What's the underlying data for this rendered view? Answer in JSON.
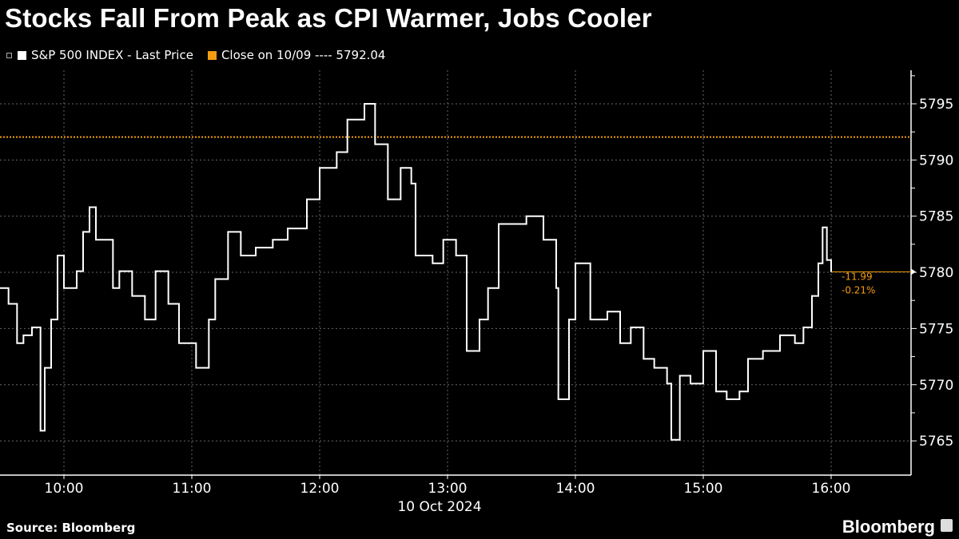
{
  "chart_data": {
    "type": "line",
    "title": "Stocks Fall From Peak as CPI Warmer, Jobs Cooler",
    "xlabel": "10 Oct 2024",
    "ylabel": "",
    "x_ticks": [
      "10:00",
      "11:00",
      "12:00",
      "13:00",
      "14:00",
      "15:00",
      "16:00"
    ],
    "y_ticks": [
      5765,
      5770,
      5775,
      5780,
      5785,
      5790,
      5795
    ],
    "ylim": [
      5762,
      5798
    ],
    "xlim": [
      "09:30",
      "16:30"
    ],
    "grid": true,
    "legend_position": "top-left",
    "series": [
      {
        "name": "S&P 500 INDEX - Last Price",
        "color": "#ffffff",
        "x": [
          "09:30",
          "09:34",
          "09:38",
          "09:41",
          "09:45",
          "09:49",
          "09:51",
          "09:54",
          "09:57",
          "10:00",
          "10:06",
          "10:09",
          "10:12",
          "10:15",
          "10:19",
          "10:23",
          "10:26",
          "10:32",
          "10:38",
          "10:43",
          "10:49",
          "10:54",
          "11:02",
          "11:08",
          "11:11",
          "11:17",
          "11:23",
          "11:30",
          "11:38",
          "11:45",
          "11:54",
          "12:00",
          "12:08",
          "12:13",
          "12:21",
          "12:26",
          "12:32",
          "12:38",
          "12:43",
          "12:45",
          "12:53",
          "12:58",
          "13:04",
          "13:09",
          "13:15",
          "13:19",
          "13:24",
          "13:32",
          "13:37",
          "13:45",
          "13:51",
          "13:52",
          "13:57",
          "14:00",
          "14:07",
          "14:15",
          "14:21",
          "14:26",
          "14:32",
          "14:37",
          "14:43",
          "14:45",
          "14:49",
          "14:54",
          "15:00",
          "15:06",
          "15:11",
          "15:17",
          "15:21",
          "15:28",
          "15:36",
          "15:43",
          "15:47",
          "15:51",
          "15:54",
          "15:56",
          "15:58",
          "16:00"
        ],
        "values": [
          5778.6,
          5777.2,
          5773.7,
          5774.4,
          5775.1,
          5765.9,
          5771.5,
          5775.8,
          5781.5,
          5778.6,
          5780.1,
          5783.6,
          5785.8,
          5782.9,
          5782.9,
          5778.6,
          5780.1,
          5777.9,
          5775.8,
          5780.1,
          5777.2,
          5773.7,
          5771.5,
          5775.8,
          5779.4,
          5783.6,
          5781.5,
          5782.2,
          5782.9,
          5783.9,
          5786.5,
          5789.3,
          5790.7,
          5793.6,
          5795.0,
          5791.4,
          5786.5,
          5789.3,
          5787.9,
          5781.5,
          5780.8,
          5782.9,
          5781.5,
          5773.0,
          5775.8,
          5778.6,
          5784.3,
          5784.3,
          5785.0,
          5782.9,
          5778.6,
          5768.7,
          5775.8,
          5780.8,
          5775.8,
          5776.5,
          5773.7,
          5775.1,
          5772.3,
          5771.5,
          5770.1,
          5765.1,
          5770.8,
          5770.1,
          5773.0,
          5769.4,
          5768.7,
          5769.4,
          5772.3,
          5773.0,
          5774.4,
          5773.7,
          5775.1,
          5777.9,
          5780.8,
          5784.0,
          5781.1,
          5780.05
        ]
      },
      {
        "name": "Close on 10/09",
        "label": "Close on 10/09 ---- 5792.04",
        "color": "#f39c12",
        "value": 5792.04
      }
    ],
    "annotations": {
      "change": "-11.99",
      "change_pct": "-0.21%",
      "last_value": 5780.05
    }
  },
  "footer": {
    "source": "Source: Bloomberg",
    "logo": "Bloomberg"
  }
}
